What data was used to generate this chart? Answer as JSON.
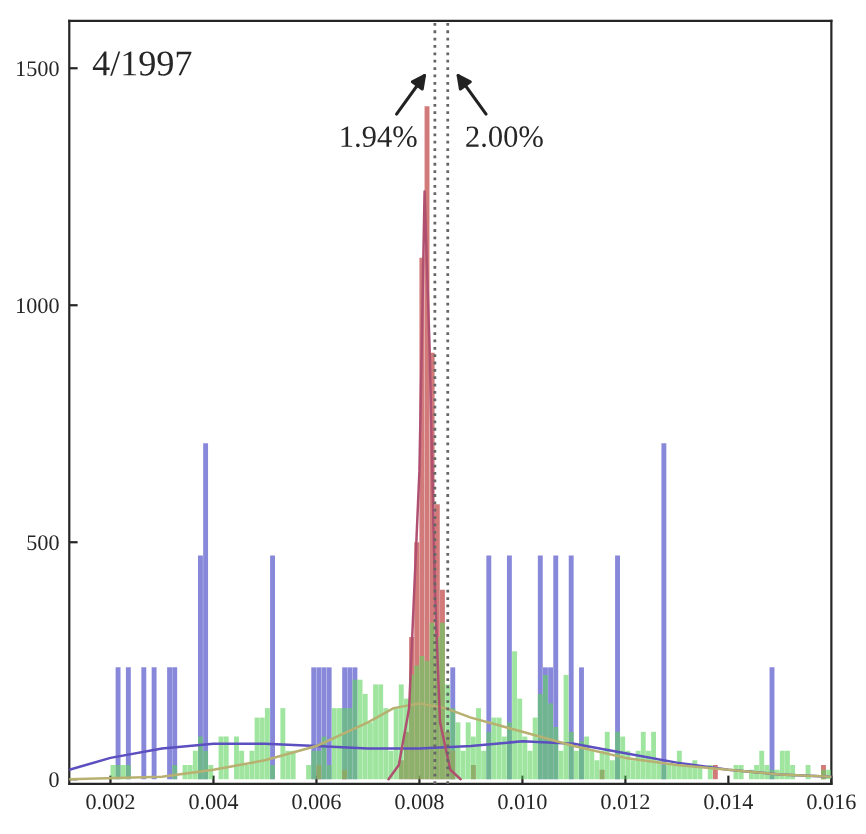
{
  "chart_data": {
    "type": "histogram",
    "annotations": [
      "4/1997",
      {
        "text": "1.94%",
        "x": 0.0083,
        "y": 1500
      },
      {
        "text": "2.00%",
        "x": 0.00855,
        "y": 1500
      }
    ],
    "bins": [
      0.002,
      0.0021,
      0.0022,
      0.0023,
      0.0024,
      0.0025,
      0.0026,
      0.0027,
      0.0028,
      0.0029,
      0.003,
      0.0031,
      0.0032,
      0.0033,
      0.0034,
      0.0035,
      0.0036,
      0.0037,
      0.0038,
      0.0039,
      0.004,
      0.0041,
      0.0042,
      0.0043,
      0.0044,
      0.0045,
      0.0046,
      0.0047,
      0.0048,
      0.0049,
      0.005,
      0.0051,
      0.0052,
      0.0053,
      0.0054,
      0.0055,
      0.0056,
      0.0057,
      0.0058,
      0.0059,
      0.006,
      0.0061,
      0.0062,
      0.0063,
      0.0064,
      0.0065,
      0.0066,
      0.0067,
      0.0068,
      0.0069,
      0.007,
      0.0071,
      0.0072,
      0.0073,
      0.0074,
      0.0075,
      0.0076,
      0.0077,
      0.0078,
      0.0079,
      0.008,
      0.0081,
      0.0082,
      0.0083,
      0.0084,
      0.0085,
      0.0086,
      0.0087,
      0.0088,
      0.0089,
      0.009,
      0.0091,
      0.0092,
      0.0093,
      0.0094,
      0.0095,
      0.0096,
      0.0097,
      0.0098,
      0.0099,
      0.01,
      0.0101,
      0.0102,
      0.0103,
      0.0104,
      0.0105,
      0.0106,
      0.0107,
      0.0108,
      0.0109,
      0.011,
      0.0111,
      0.0112,
      0.0113,
      0.0114,
      0.0115,
      0.0116,
      0.0117,
      0.0118,
      0.0119,
      0.012,
      0.0121,
      0.0122,
      0.0123,
      0.0124,
      0.0125,
      0.0126,
      0.0127,
      0.0128,
      0.0129,
      0.013,
      0.0131,
      0.0132,
      0.0133,
      0.0134,
      0.0135,
      0.0136,
      0.0137,
      0.0138,
      0.0139,
      0.014,
      0.0141,
      0.0142,
      0.0143,
      0.0144,
      0.0145,
      0.0146,
      0.0147,
      0.0148,
      0.0149,
      0.015,
      0.0151,
      0.0152,
      0.0153,
      0.0154,
      0.0155,
      0.0156,
      0.0157,
      0.0158,
      0.0159,
      0.016
    ],
    "xlim": [
      0.0012,
      0.016
    ],
    "ylim": [
      -10,
      1600
    ],
    "xticks": [
      {
        "value": 0.002,
        "label": "0.002"
      },
      {
        "value": 0.004,
        "label": "0.004"
      },
      {
        "value": 0.006,
        "label": "0.006"
      },
      {
        "value": 0.008,
        "label": "0.008"
      },
      {
        "value": 0.01,
        "label": "0.010"
      },
      {
        "value": 0.012,
        "label": "0.012"
      },
      {
        "value": 0.014,
        "label": "0.014"
      },
      {
        "value": 0.016,
        "label": "0.016"
      }
    ],
    "yticks": [
      0,
      500,
      1000,
      1500
    ],
    "grid": false,
    "legend": false,
    "series": [
      {
        "color": "#7b7bd6",
        "values": [
          0,
          236,
          0,
          236,
          0,
          0,
          236,
          0,
          236,
          0,
          0,
          236,
          236,
          0,
          0,
          0,
          0,
          472,
          709,
          0,
          0,
          0,
          0,
          0,
          0,
          0,
          0,
          0,
          0,
          0,
          0,
          472,
          0,
          0,
          0,
          0,
          0,
          0,
          0,
          236,
          236,
          236,
          236,
          0,
          0,
          236,
          236,
          236,
          0,
          0,
          0,
          0,
          0,
          0,
          0,
          0,
          0,
          0,
          0,
          0,
          0,
          0,
          0,
          0,
          0,
          0,
          236,
          0,
          0,
          0,
          0,
          0,
          0,
          472,
          0,
          0,
          0,
          472,
          0,
          0,
          0,
          0,
          0,
          472,
          236,
          236,
          472,
          0,
          0,
          472,
          0,
          236,
          0,
          0,
          0,
          0,
          0,
          0,
          472,
          0,
          0,
          0,
          0,
          0,
          0,
          0,
          0,
          709,
          0,
          0,
          0,
          0,
          0,
          0,
          0,
          0,
          0,
          0,
          0,
          0,
          0,
          0,
          0,
          0,
          0,
          0,
          0,
          0,
          236,
          0,
          0,
          0,
          0,
          0,
          0,
          0,
          0,
          0,
          0,
          0
        ]
      },
      {
        "color": "#cd6b6b",
        "values": [
          0,
          0,
          0,
          0,
          0,
          0,
          0,
          0,
          0,
          0,
          0,
          0,
          0,
          0,
          0,
          0,
          0,
          0,
          0,
          0,
          0,
          0,
          0,
          0,
          0,
          0,
          0,
          0,
          0,
          0,
          0,
          0,
          0,
          0,
          0,
          0,
          0,
          0,
          0,
          0,
          30,
          0,
          0,
          0,
          0,
          20,
          0,
          0,
          0,
          0,
          0,
          0,
          0,
          0,
          0,
          0,
          40,
          100,
          300,
          500,
          1100,
          1420,
          900,
          580,
          400,
          100,
          60,
          0,
          0,
          0,
          30,
          0,
          0,
          0,
          0,
          0,
          0,
          0,
          0,
          0,
          0,
          0,
          0,
          0,
          0,
          0,
          0,
          0,
          0,
          0,
          0,
          0,
          0,
          0,
          0,
          20,
          0,
          0,
          0,
          0,
          0,
          0,
          0,
          0,
          0,
          0,
          0,
          0,
          0,
          0,
          0,
          0,
          0,
          0,
          0,
          0,
          0,
          30,
          0,
          0,
          0,
          0,
          0,
          0,
          0,
          0,
          0,
          0,
          0,
          0,
          0,
          0,
          0,
          0,
          0,
          0,
          0,
          0,
          30,
          0
        ]
      },
      {
        "color": "#5fd35f",
        "values": [
          30,
          30,
          30,
          30,
          0,
          0,
          0,
          0,
          0,
          0,
          0,
          0,
          30,
          0,
          30,
          30,
          60,
          90,
          60,
          30,
          0,
          90,
          90,
          0,
          90,
          60,
          30,
          60,
          130,
          130,
          150,
          30,
          0,
          150,
          60,
          60,
          0,
          0,
          30,
          60,
          60,
          90,
          30,
          150,
          150,
          150,
          150,
          210,
          210,
          180,
          120,
          200,
          200,
          150,
          60,
          150,
          200,
          170,
          220,
          240,
          260,
          250,
          330,
          300,
          330,
          200,
          150,
          120,
          60,
          120,
          90,
          150,
          60,
          100,
          130,
          130,
          90,
          120,
          270,
          170,
          90,
          60,
          130,
          180,
          220,
          160,
          110,
          60,
          220,
          100,
          60,
          80,
          90,
          60,
          40,
          60,
          100,
          40,
          100,
          90,
          60,
          40,
          60,
          100,
          60,
          100,
          40,
          30,
          30,
          30,
          60,
          30,
          30,
          40,
          30,
          0,
          30,
          0,
          0,
          0,
          0,
          30,
          30,
          0,
          20,
          30,
          60,
          30,
          20,
          20,
          60,
          60,
          30,
          0,
          0,
          30,
          0,
          0,
          20,
          20
        ]
      },
      {
        "type": "line",
        "color": "#5c4fc0",
        "x": [
          0.0012,
          0.002,
          0.003,
          0.004,
          0.005,
          0.006,
          0.007,
          0.008,
          0.009,
          0.01,
          0.011,
          0.012,
          0.013,
          0.014,
          0.015,
          0.016
        ],
        "values": [
          20,
          45,
          65,
          75,
          75,
          70,
          65,
          65,
          70,
          80,
          75,
          55,
          35,
          20,
          10,
          5
        ]
      },
      {
        "type": "line",
        "color": "#b8b070",
        "x": [
          0.0012,
          0.003,
          0.004,
          0.005,
          0.006,
          0.007,
          0.0075,
          0.008,
          0.0085,
          0.009,
          0.01,
          0.011,
          0.012,
          0.013,
          0.014,
          0.015,
          0.016
        ],
        "values": [
          0,
          5,
          20,
          40,
          70,
          120,
          150,
          160,
          150,
          130,
          100,
          70,
          45,
          30,
          20,
          10,
          5
        ]
      },
      {
        "type": "line",
        "color": "#b05070",
        "x": [
          0.0074,
          0.0076,
          0.0078,
          0.008,
          0.0081,
          0.0082,
          0.0083,
          0.0084,
          0.0086,
          0.0088
        ],
        "values": [
          0,
          30,
          150,
          650,
          1240,
          900,
          400,
          120,
          20,
          0
        ]
      }
    ],
    "ref_lines": [
      {
        "axis": "x",
        "value": 0.0083,
        "color": "#666666",
        "line_style": "dotted"
      },
      {
        "axis": "x",
        "value": 0.00855,
        "color": "#666666",
        "line_style": "dotted"
      }
    ]
  }
}
